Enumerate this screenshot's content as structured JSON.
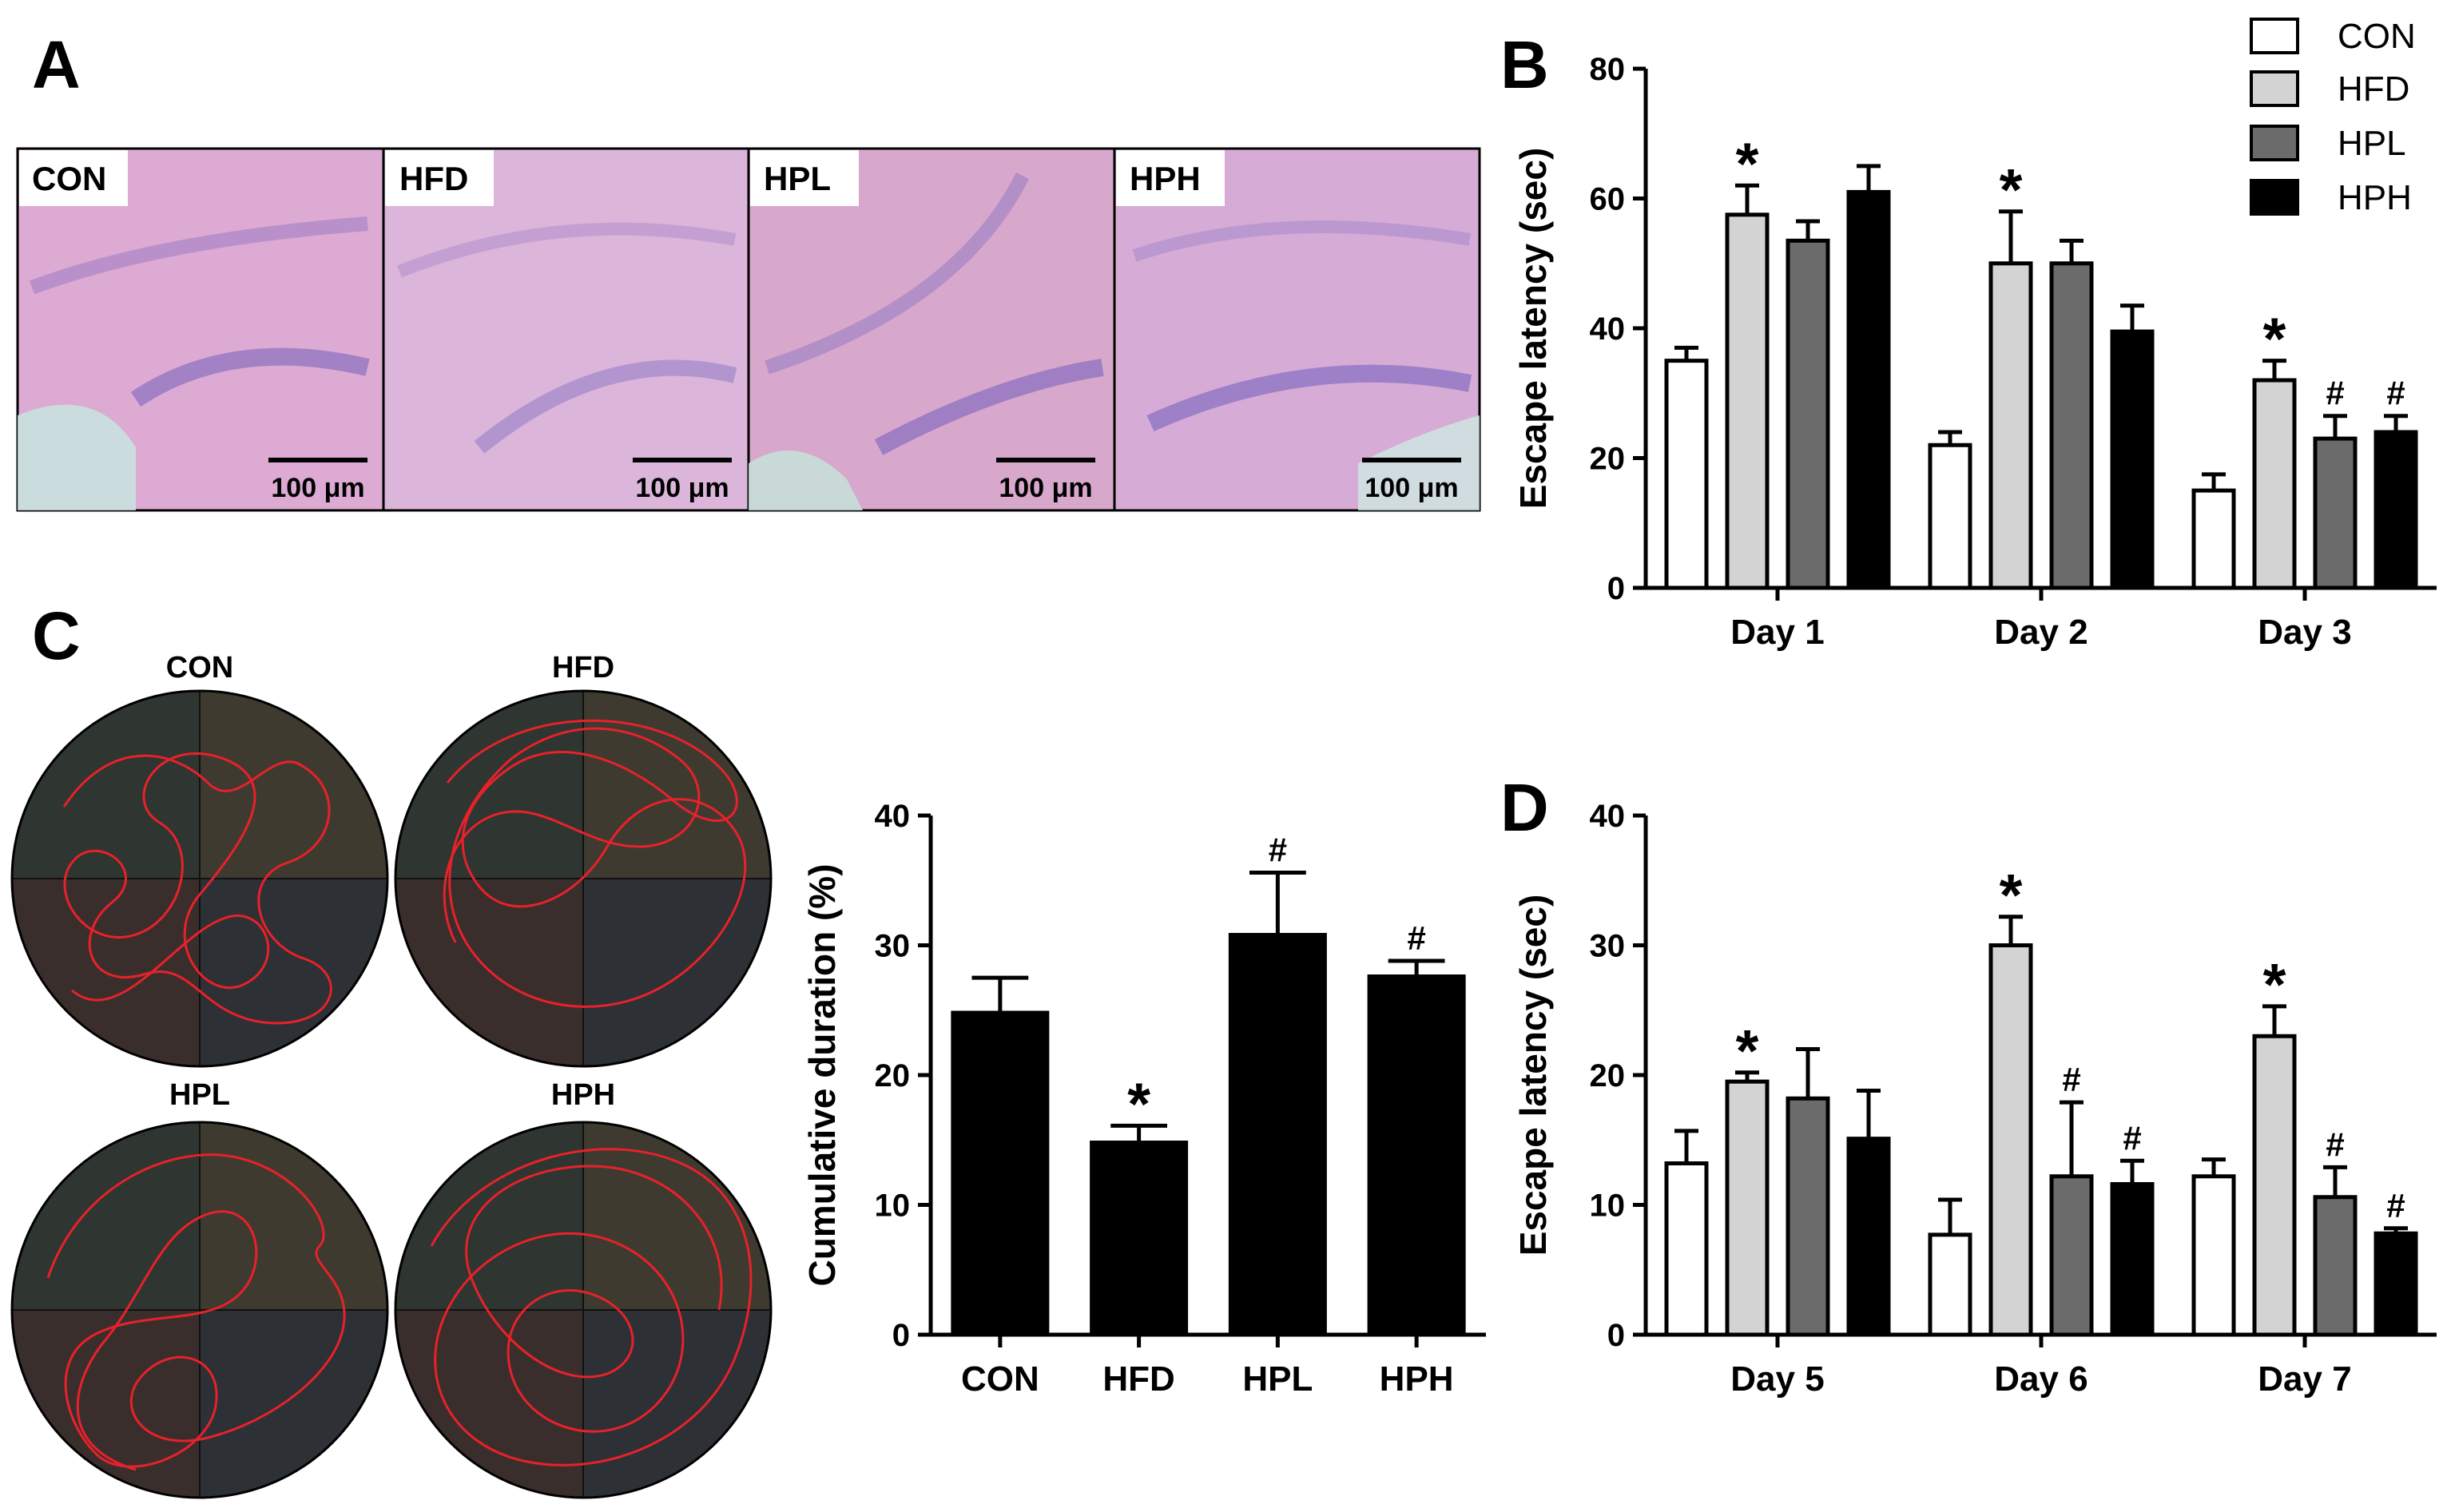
{
  "panels": {
    "a": {
      "letter": "A",
      "images": [
        {
          "label": "CON",
          "scale_bar": "100 μm",
          "tint": "#d8a5cf"
        },
        {
          "label": "HFD",
          "scale_bar": "100 μm",
          "tint": "#dbb3d8"
        },
        {
          "label": "HPL",
          "scale_bar": "100 μm",
          "tint": "#d9a6cc"
        },
        {
          "label": "HPH",
          "scale_bar": "100 μm",
          "tint": "#d6aad6"
        }
      ]
    },
    "b": {
      "letter": "B"
    },
    "c": {
      "letter": "C",
      "tracks": [
        {
          "label": "CON"
        },
        {
          "label": "HFD"
        },
        {
          "label": "HPL"
        },
        {
          "label": "HPH"
        }
      ]
    },
    "d": {
      "letter": "D"
    }
  },
  "legend": {
    "items": [
      {
        "name": "CON",
        "color": "#ffffff"
      },
      {
        "name": "HFD",
        "color": "#d3d3d3"
      },
      {
        "name": "HPL",
        "color": "#6b6b6b"
      },
      {
        "name": "HPH",
        "color": "#000000"
      }
    ]
  },
  "chart_data": [
    {
      "id": "B",
      "type": "bar",
      "ylabel": "Escape latency (sec)",
      "ylim": [
        0,
        80
      ],
      "yticks": [
        0,
        20,
        40,
        60,
        80
      ],
      "categories": [
        "Day 1",
        "Day 2",
        "Day 3"
      ],
      "series": [
        {
          "name": "CON",
          "color": "#ffffff",
          "values": [
            35,
            22,
            15
          ],
          "errors": [
            2,
            2,
            2.5
          ],
          "marks": [
            "",
            "",
            ""
          ]
        },
        {
          "name": "HFD",
          "color": "#d3d3d3",
          "values": [
            57.5,
            50,
            32
          ],
          "errors": [
            4.5,
            8,
            3
          ],
          "marks": [
            "*",
            "*",
            "*"
          ]
        },
        {
          "name": "HPL",
          "color": "#6b6b6b",
          "values": [
            53.5,
            50,
            23
          ],
          "errors": [
            3,
            3.5,
            3.5
          ],
          "marks": [
            "",
            "",
            "#"
          ]
        },
        {
          "name": "HPH",
          "color": "#000000",
          "values": [
            61,
            39.5,
            24
          ],
          "errors": [
            4,
            4,
            2.5
          ],
          "marks": [
            "",
            "",
            "#"
          ]
        }
      ]
    },
    {
      "id": "C",
      "type": "bar",
      "ylabel": "Cumulative duration (%)",
      "ylim": [
        0,
        40
      ],
      "yticks": [
        0,
        10,
        20,
        30,
        40
      ],
      "categories": [
        "CON",
        "HFD",
        "HPL",
        "HPH"
      ],
      "series": [
        {
          "name": "Cumulative duration",
          "color": "#000000",
          "values": [
            24.8,
            14.8,
            30.8,
            27.6
          ],
          "errors": [
            2.7,
            1.3,
            4.8,
            1.2
          ],
          "marks": [
            "",
            "*",
            "#",
            "#"
          ]
        }
      ]
    },
    {
      "id": "D",
      "type": "bar",
      "ylabel": "Escape latency (sec)",
      "ylim": [
        0,
        40
      ],
      "yticks": [
        0,
        10,
        20,
        30,
        40
      ],
      "categories": [
        "Day 5",
        "Day 6",
        "Day 7"
      ],
      "series": [
        {
          "name": "CON",
          "color": "#ffffff",
          "values": [
            13.2,
            7.7,
            12.2
          ],
          "errors": [
            2.5,
            2.7,
            1.3
          ],
          "marks": [
            "",
            "",
            ""
          ]
        },
        {
          "name": "HFD",
          "color": "#d3d3d3",
          "values": [
            19.5,
            30,
            23
          ],
          "errors": [
            0.7,
            2.2,
            2.3
          ],
          "marks": [
            "*",
            "*",
            "*"
          ]
        },
        {
          "name": "HPL",
          "color": "#6b6b6b",
          "values": [
            18.2,
            12.2,
            10.6
          ],
          "errors": [
            3.8,
            5.7,
            2.3
          ],
          "marks": [
            "",
            "#",
            "#"
          ]
        },
        {
          "name": "HPH",
          "color": "#000000",
          "values": [
            15.1,
            11.6,
            7.8
          ],
          "errors": [
            3.7,
            1.8,
            0.4
          ],
          "marks": [
            "",
            "#",
            "#"
          ]
        }
      ]
    }
  ]
}
